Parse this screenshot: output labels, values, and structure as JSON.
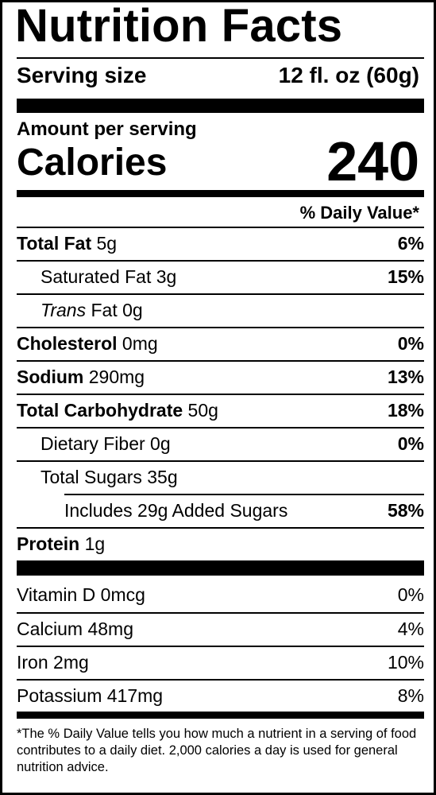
{
  "title": "Nutrition Facts",
  "serving": {
    "label": "Serving size",
    "value": "12 fl. oz (60g)"
  },
  "amount_per_serving": "Amount per serving",
  "calories": {
    "label": "Calories",
    "value": "240"
  },
  "daily_value_header": "% Daily Value*",
  "nutrients": [
    {
      "name": "Total Fat",
      "amount": "5g",
      "dv": "6%"
    },
    {
      "name": "Saturated Fat",
      "amount": "3g",
      "dv": "15%"
    },
    {
      "name_italic": "Trans",
      "name": "Fat",
      "amount": "0g",
      "dv": ""
    },
    {
      "name": "Cholesterol",
      "amount": "0mg",
      "dv": "0%"
    },
    {
      "name": "Sodium",
      "amount": "290mg",
      "dv": "13%"
    },
    {
      "name": "Total Carbohydrate",
      "amount": "50g",
      "dv": "18%"
    },
    {
      "name": "Dietary Fiber",
      "amount": "0g",
      "dv": "0%"
    },
    {
      "name": "Total Sugars",
      "amount": "35g",
      "dv": ""
    },
    {
      "name": "Includes 29g Added Sugars",
      "amount": "",
      "dv": "58%"
    },
    {
      "name": "Protein",
      "amount": "1g",
      "dv": ""
    }
  ],
  "vitamins": [
    {
      "name": "Vitamin D",
      "amount": "0mcg",
      "dv": "0%"
    },
    {
      "name": "Calcium",
      "amount": "48mg",
      "dv": "4%"
    },
    {
      "name": "Iron",
      "amount": "2mg",
      "dv": "10%"
    },
    {
      "name": "Potassium",
      "amount": "417mg",
      "dv": "8%"
    }
  ],
  "footnote": "*The % Daily Value tells you how much a nutrient in a serving of food contributes to a daily diet. 2,000 calories a day is used for general nutrition advice."
}
